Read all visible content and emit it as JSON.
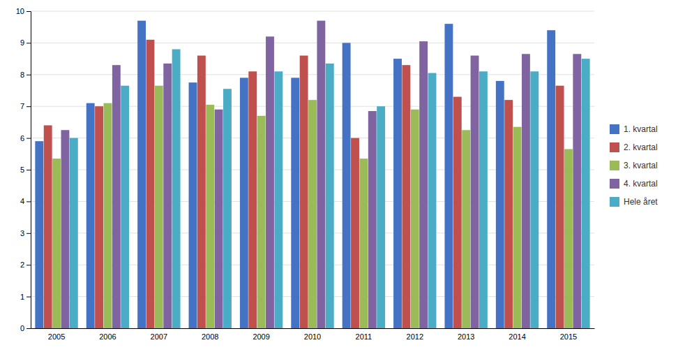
{
  "chart_data": {
    "type": "bar",
    "categories": [
      "2005",
      "2006",
      "2007",
      "2008",
      "2009",
      "2010",
      "2011",
      "2012",
      "2013",
      "2014",
      "2015"
    ],
    "series": [
      {
        "name": "1. kvartal",
        "color": "#4472C4",
        "values": [
          5.9,
          7.1,
          9.7,
          7.75,
          7.9,
          7.9,
          9.0,
          8.5,
          9.6,
          7.8,
          9.4
        ]
      },
      {
        "name": "2. kvartal",
        "color": "#C0504D",
        "values": [
          6.4,
          7.0,
          9.1,
          8.6,
          8.1,
          8.6,
          6.0,
          8.3,
          7.3,
          7.2,
          7.65
        ]
      },
      {
        "name": "3. kvartal",
        "color": "#9BBB59",
        "values": [
          5.35,
          7.1,
          7.65,
          7.05,
          6.7,
          7.2,
          5.35,
          6.9,
          6.25,
          6.35,
          5.65
        ]
      },
      {
        "name": "4. kvartal",
        "color": "#8064A2",
        "values": [
          6.25,
          8.3,
          8.35,
          6.9,
          9.2,
          9.7,
          6.85,
          9.05,
          8.6,
          8.65,
          8.65
        ]
      },
      {
        "name": "Hele året",
        "color": "#4BACC6",
        "values": [
          6.0,
          7.65,
          8.8,
          7.55,
          8.1,
          8.35,
          7.0,
          8.05,
          8.1,
          8.1,
          8.5
        ]
      }
    ],
    "ylim": [
      0,
      10
    ],
    "yticks": [
      0,
      1,
      2,
      3,
      4,
      5,
      6,
      7,
      8,
      9,
      10
    ],
    "grid": true,
    "legend": "right"
  }
}
